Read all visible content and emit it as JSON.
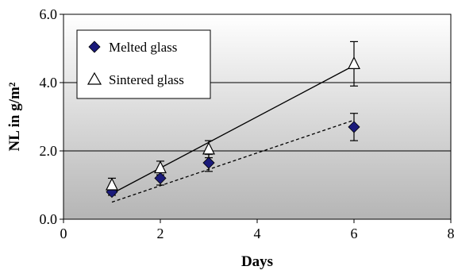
{
  "chart_data": {
    "type": "scatter",
    "title": "",
    "xlabel": "Days",
    "ylabel": "NL in g/m²",
    "xlim": [
      0,
      8
    ],
    "ylim": [
      0,
      6
    ],
    "x_ticks": [
      "0",
      "2",
      "4",
      "6",
      "8"
    ],
    "y_ticks": [
      "0.0",
      "2.0",
      "4.0",
      "6.0"
    ],
    "grid": "horizontal",
    "legend_position": "top-left",
    "background": "gray-gradient",
    "series": [
      {
        "name": "Melted glass",
        "marker": "diamond",
        "color": "#1a1a7a",
        "x": [
          1,
          2,
          3,
          6
        ],
        "y": [
          0.8,
          1.2,
          1.65,
          2.7
        ],
        "error": [
          0.1,
          0.2,
          0.25,
          0.4
        ],
        "trendline": {
          "style": "dotted",
          "x": [
            1,
            6
          ],
          "y": [
            0.5,
            2.9
          ]
        }
      },
      {
        "name": "Sintered glass",
        "marker": "triangle-open",
        "color": "#000000",
        "x": [
          1,
          2,
          3,
          6
        ],
        "y": [
          1.0,
          1.5,
          2.05,
          4.55
        ],
        "error": [
          0.2,
          0.2,
          0.25,
          0.65
        ],
        "trendline": {
          "style": "solid",
          "x": [
            1,
            6
          ],
          "y": [
            0.75,
            4.5
          ]
        }
      }
    ]
  }
}
